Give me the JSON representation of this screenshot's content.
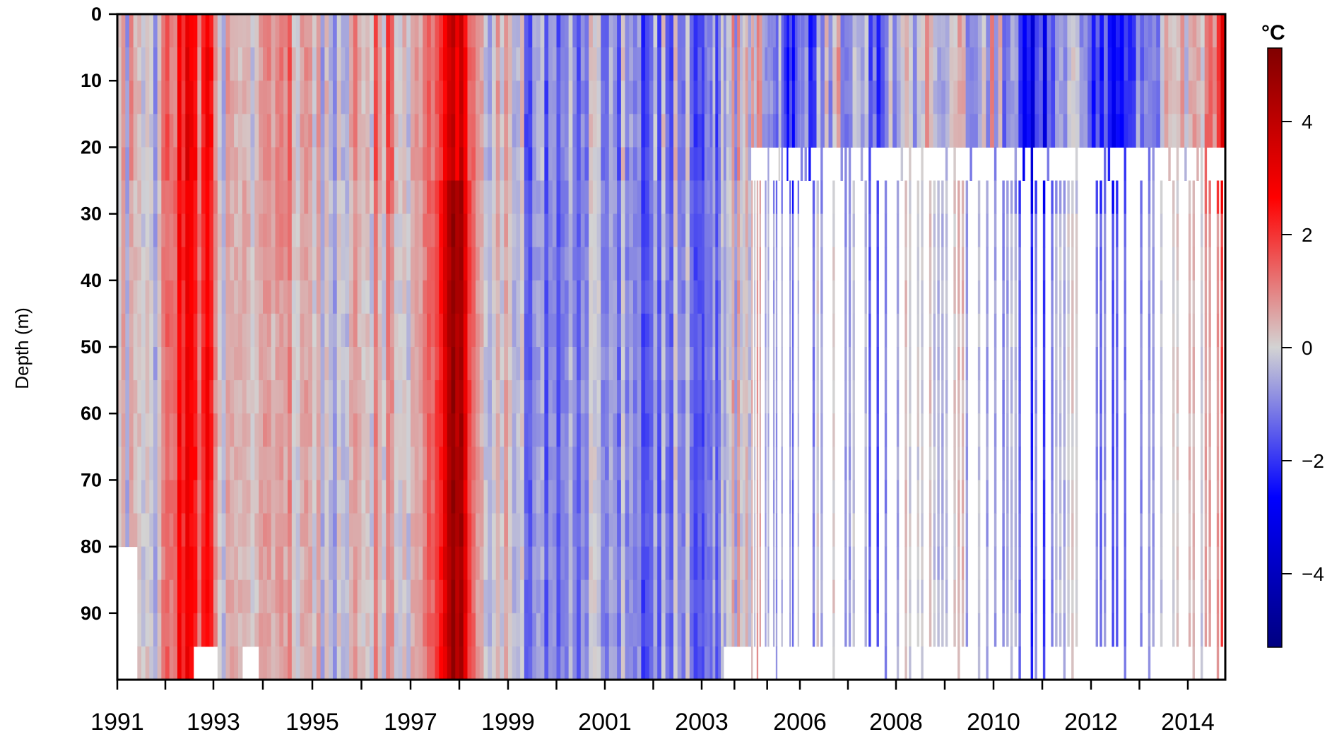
{
  "chart_data": {
    "type": "heatmap",
    "title": "",
    "ylabel": "Depth (m)",
    "xlabel": "",
    "x_ticks": [
      "1991",
      "1993",
      "1995",
      "1997",
      "1999",
      "2001",
      "2003",
      "2006",
      "2008",
      "2010",
      "2012",
      "2014"
    ],
    "x_tick_years": [
      1991,
      1993,
      1995,
      1997,
      1999,
      2001,
      2003,
      2006,
      2008,
      2010,
      2012,
      2014
    ],
    "y_ticks": [
      "0",
      "10",
      "20",
      "30",
      "40",
      "50",
      "60",
      "70",
      "80",
      "90"
    ],
    "y_tick_values": [
      0,
      10,
      20,
      30,
      40,
      50,
      60,
      70,
      80,
      90
    ],
    "ylim": [
      0,
      100
    ],
    "y_inverted": true,
    "depth_levels_m": [
      0,
      5,
      10,
      15,
      20,
      25,
      30,
      35,
      40,
      45,
      50,
      55,
      60,
      65,
      70,
      75,
      80,
      85,
      90,
      95
    ],
    "colorbar": {
      "unit": "°C",
      "ticks": [
        "4",
        "2",
        "0",
        "−2",
        "−4"
      ],
      "tick_values": [
        4,
        2,
        0,
        -2,
        -4
      ],
      "range": [
        -5.3,
        5.3
      ],
      "colors": [
        "#000080",
        "#0000ff",
        "#d3d3d3",
        "#ff0000",
        "#800000"
      ]
    },
    "regimes": [
      {
        "period": "1991–2004",
        "sampling": "continuous monthly profiles to ~95 m"
      },
      {
        "period": "2004–2014",
        "sampling": "full profiles to 20 m; sparse profiles below 25 m"
      }
    ],
    "features": [
      {
        "period": "1992–1993",
        "anomaly_C": 2.5,
        "depth": "full column"
      },
      {
        "period": "1997–1998",
        "anomaly_C": 4.5,
        "depth": "full column, peak 40–60 m"
      },
      {
        "period": "1999–2004",
        "anomaly_C": -1.5,
        "depth": "mostly negative"
      },
      {
        "period": "2010–2013",
        "anomaly_C": -3.0,
        "depth": "0–25 m"
      },
      {
        "period": "2014–2015",
        "anomaly_C": 3.0,
        "depth": "0–25 m"
      }
    ]
  }
}
